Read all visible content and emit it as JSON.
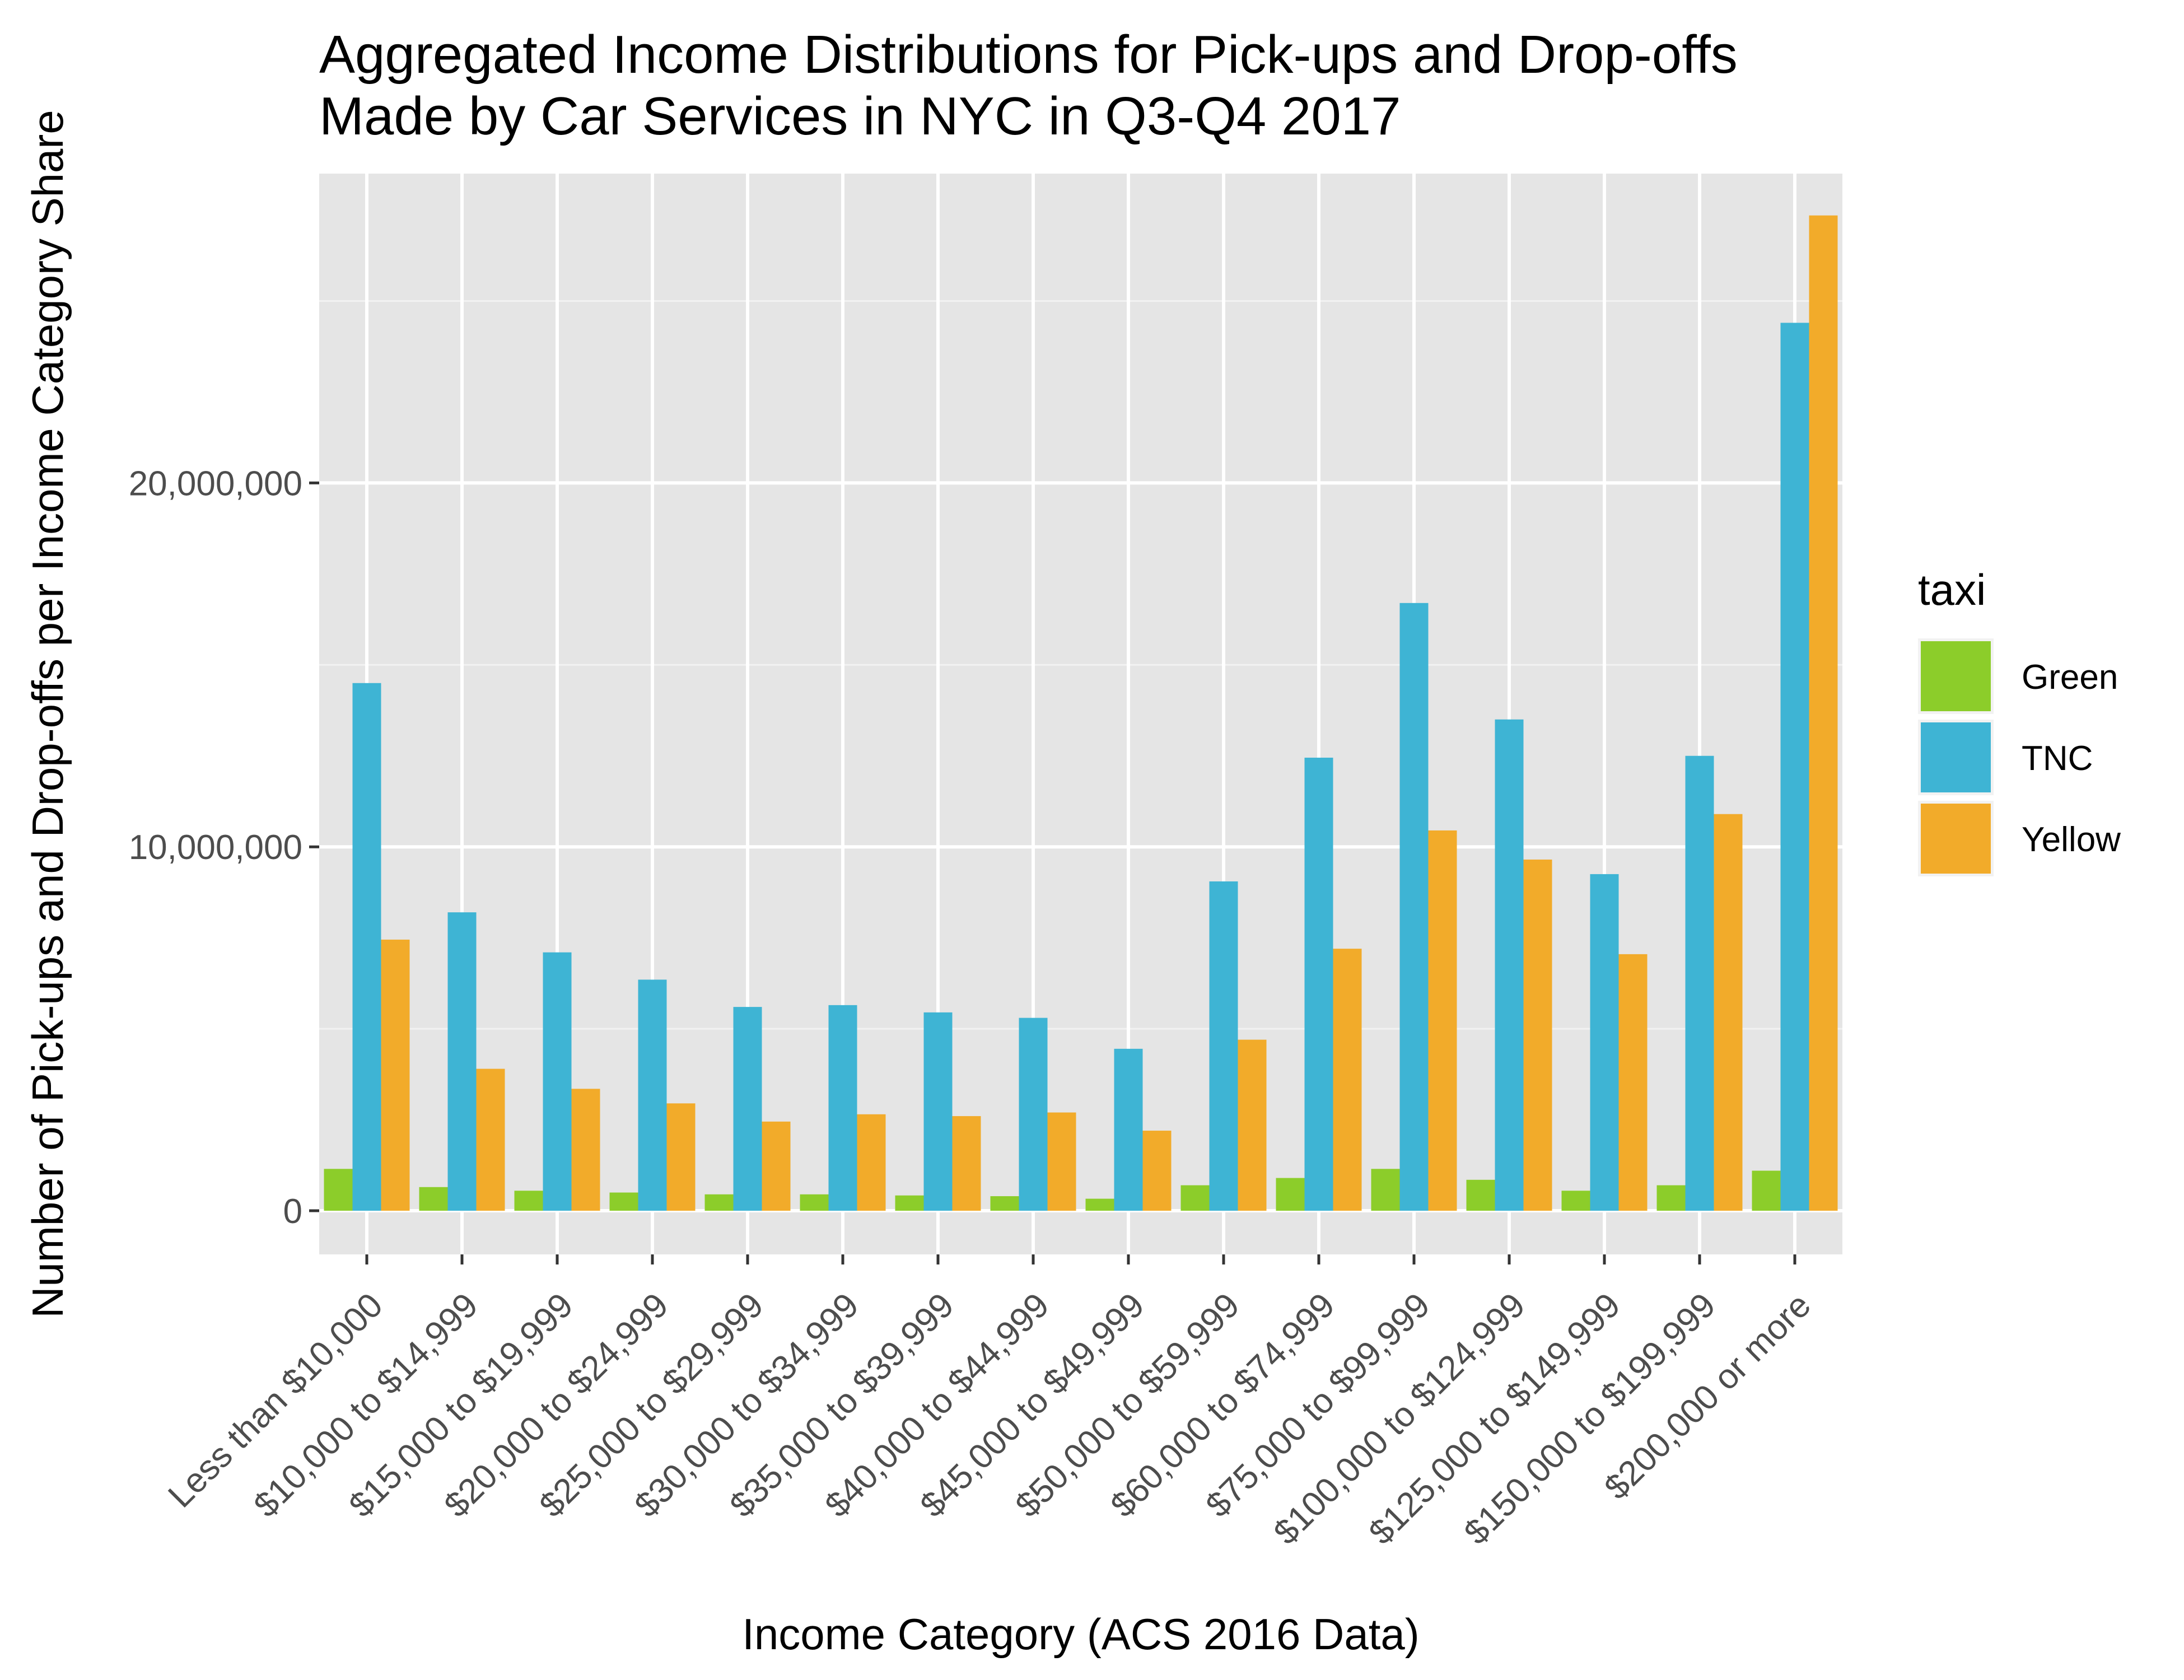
{
  "chart_data": {
    "type": "bar",
    "title_lines": [
      "Aggregated Income Distributions for Pick-ups and Drop-offs",
      "Made by Car Services in NYC in Q3-Q4 2017"
    ],
    "xlabel": "Income Category (ACS 2016 Data)",
    "ylabel": "Number of Pick-ups and Drop-offs per Income Category Share",
    "ylim": [
      -1200000,
      28500000
    ],
    "yticks": [
      0,
      10000000,
      20000000
    ],
    "ytick_labels": [
      "0",
      "10,000,000",
      "20,000,000"
    ],
    "grid": true,
    "legend_position": "right",
    "legend_title": "taxi",
    "categories": [
      "Less than $10,000",
      "$10,000 to $14,999",
      "$15,000 to $19,999",
      "$20,000 to $24,999",
      "$25,000 to $29,999",
      "$30,000 to $34,999",
      "$35,000 to $39,999",
      "$40,000 to $44,999",
      "$45,000 to $49,999",
      "$50,000 to $59,999",
      "$60,000 to $74,999",
      "$75,000 to $99,999",
      "$100,000 to $124,999",
      "$125,000 to $149,999",
      "$150,000 to $199,999",
      "$200,000 or more"
    ],
    "series": [
      {
        "name": "Green",
        "color": "#8ccd2a",
        "values": [
          1150000,
          650000,
          550000,
          500000,
          450000,
          450000,
          420000,
          400000,
          330000,
          700000,
          900000,
          1150000,
          850000,
          550000,
          700000,
          1100000
        ]
      },
      {
        "name": "TNC",
        "color": "#3eb4d4",
        "values": [
          14500000,
          8200000,
          7100000,
          6350000,
          5600000,
          5650000,
          5450000,
          5300000,
          4450000,
          9050000,
          12450000,
          16700000,
          13500000,
          9250000,
          12500000,
          24400000
        ]
      },
      {
        "name": "Yellow",
        "color": "#f2ab2a",
        "values": [
          7450000,
          3900000,
          3350000,
          2950000,
          2450000,
          2650000,
          2600000,
          2700000,
          2200000,
          4700000,
          7200000,
          10450000,
          9650000,
          7050000,
          10900000,
          27350000
        ]
      }
    ]
  }
}
